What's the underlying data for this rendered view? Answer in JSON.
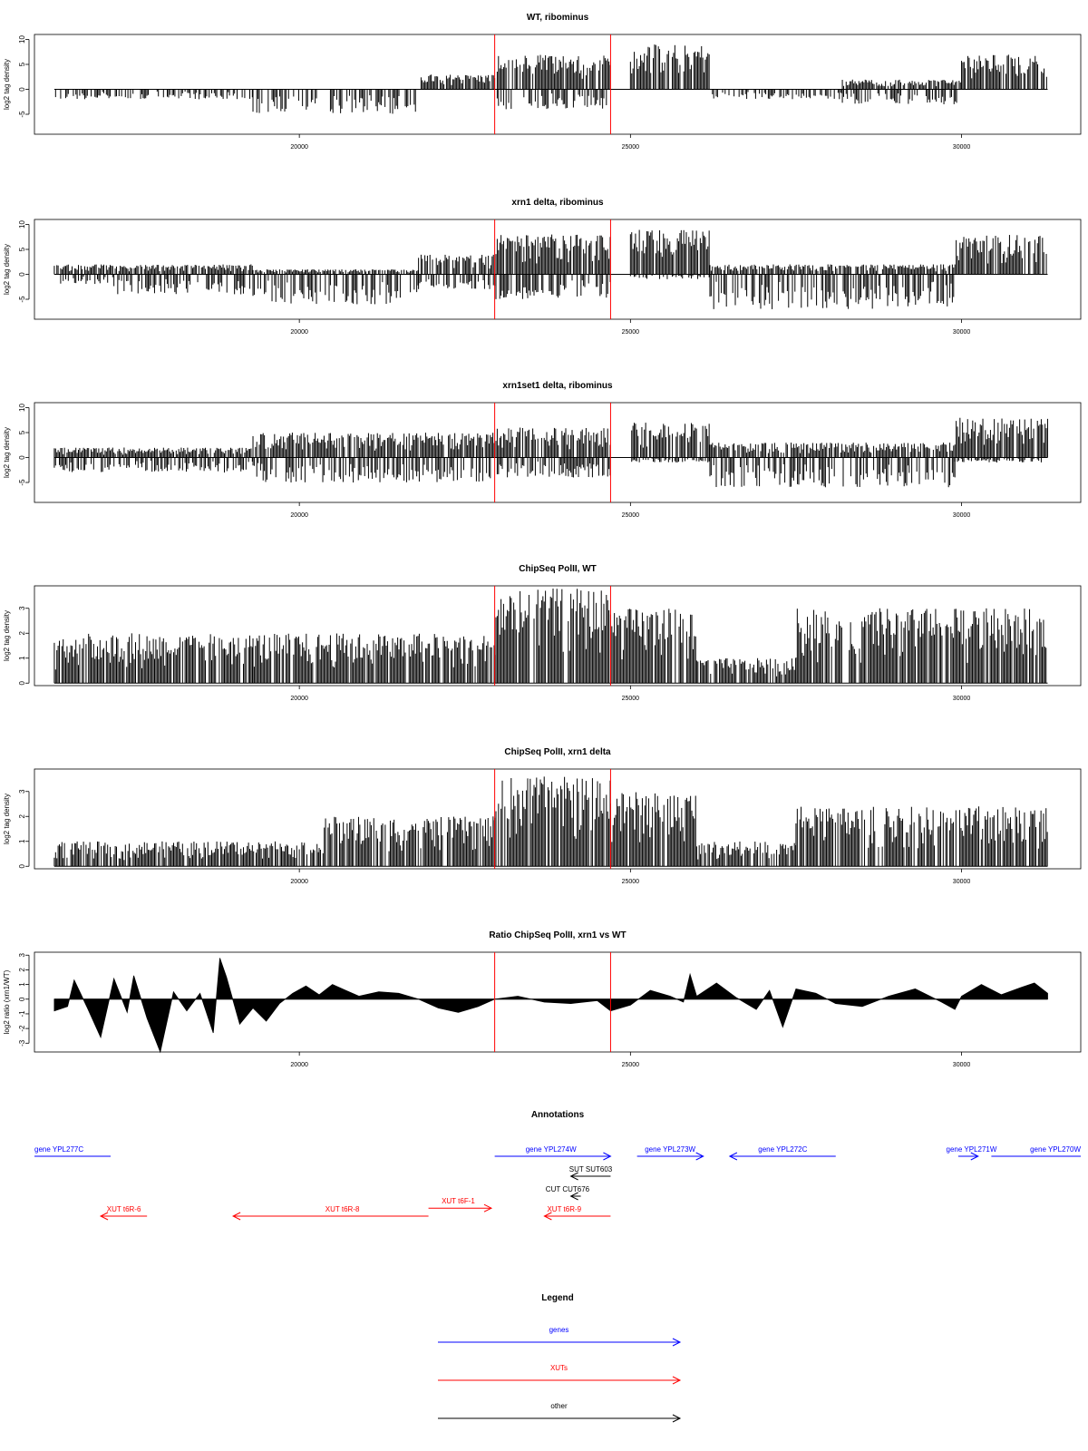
{
  "chart_data": [
    {
      "type": "bar",
      "title": "WT, ribominus",
      "ylabel": "log2 tag density",
      "xlim": [
        16000,
        31800
      ],
      "ylim": [
        -9,
        11
      ],
      "yticks": [
        -5,
        0,
        5,
        10
      ],
      "xticks": [
        20000,
        25000,
        30000
      ],
      "markers": [
        22950,
        24700
      ],
      "regions": [
        {
          "x0": 16000,
          "x1": 16300,
          "pos": 0,
          "neg": 3
        },
        {
          "x0": 16300,
          "x1": 19300,
          "pos": 0,
          "neg": 2
        },
        {
          "x0": 19300,
          "x1": 21800,
          "pos": 0,
          "neg": 5
        },
        {
          "x0": 21800,
          "x1": 22950,
          "pos": 3,
          "neg": 0
        },
        {
          "x0": 22950,
          "x1": 24700,
          "pos": 7,
          "neg": 4
        },
        {
          "x0": 24700,
          "x1": 25000,
          "pos": 0,
          "neg": 0
        },
        {
          "x0": 25000,
          "x1": 26200,
          "pos": 9,
          "neg": 0
        },
        {
          "x0": 26200,
          "x1": 28200,
          "pos": 0,
          "neg": 2
        },
        {
          "x0": 28200,
          "x1": 30000,
          "pos": 2,
          "neg": 3
        },
        {
          "x0": 30000,
          "x1": 31300,
          "pos": 7,
          "neg": 0
        }
      ]
    },
    {
      "type": "bar",
      "title": "xrn1 delta, ribominus",
      "ylabel": "log2 tag density",
      "xlim": [
        16000,
        31800
      ],
      "ylim": [
        -9,
        11
      ],
      "yticks": [
        -5,
        0,
        5,
        10
      ],
      "xticks": [
        20000,
        25000,
        30000
      ],
      "markers": [
        22950,
        24700
      ],
      "regions": [
        {
          "x0": 16000,
          "x1": 17200,
          "pos": 2,
          "neg": 2
        },
        {
          "x0": 17200,
          "x1": 19300,
          "pos": 2,
          "neg": 4
        },
        {
          "x0": 19300,
          "x1": 21800,
          "pos": 1,
          "neg": 6
        },
        {
          "x0": 21800,
          "x1": 22950,
          "pos": 4,
          "neg": 3
        },
        {
          "x0": 22950,
          "x1": 24700,
          "pos": 8,
          "neg": 5
        },
        {
          "x0": 24700,
          "x1": 25000,
          "pos": 0,
          "neg": 0
        },
        {
          "x0": 25000,
          "x1": 26200,
          "pos": 9,
          "neg": 1
        },
        {
          "x0": 26200,
          "x1": 29900,
          "pos": 2,
          "neg": 7
        },
        {
          "x0": 29900,
          "x1": 31300,
          "pos": 8,
          "neg": 0
        }
      ]
    },
    {
      "type": "bar",
      "title": "xrn1set1 delta, ribominus",
      "ylabel": "log2 tag density",
      "xlim": [
        16000,
        31800
      ],
      "ylim": [
        -9,
        11
      ],
      "yticks": [
        -5,
        0,
        5,
        10
      ],
      "xticks": [
        20000,
        25000,
        30000
      ],
      "markers": [
        22950,
        24700
      ],
      "regions": [
        {
          "x0": 16000,
          "x1": 19300,
          "pos": 2,
          "neg": 3
        },
        {
          "x0": 19300,
          "x1": 22950,
          "pos": 5,
          "neg": 5
        },
        {
          "x0": 22950,
          "x1": 24700,
          "pos": 6,
          "neg": 4
        },
        {
          "x0": 24700,
          "x1": 25000,
          "pos": 0,
          "neg": 0
        },
        {
          "x0": 25000,
          "x1": 26200,
          "pos": 7,
          "neg": 1
        },
        {
          "x0": 26200,
          "x1": 29900,
          "pos": 3,
          "neg": 6
        },
        {
          "x0": 29900,
          "x1": 31300,
          "pos": 8,
          "neg": 1
        }
      ]
    },
    {
      "type": "bar",
      "title": "ChipSeq PolII, WT",
      "ylabel": "log2 tag density",
      "xlim": [
        16000,
        31800
      ],
      "ylim": [
        -0.1,
        3.9
      ],
      "yticks": [
        0,
        1,
        2,
        3
      ],
      "xticks": [
        20000,
        25000,
        30000
      ],
      "markers": [
        22950,
        24700
      ],
      "regions": [
        {
          "x0": 16000,
          "x1": 19300,
          "pos": 2,
          "neg": 0
        },
        {
          "x0": 19300,
          "x1": 22950,
          "pos": 2,
          "neg": 0
        },
        {
          "x0": 22950,
          "x1": 24700,
          "pos": 3.8,
          "neg": 0
        },
        {
          "x0": 24700,
          "x1": 26000,
          "pos": 3,
          "neg": 0
        },
        {
          "x0": 26000,
          "x1": 27500,
          "pos": 1,
          "neg": 0
        },
        {
          "x0": 27500,
          "x1": 31300,
          "pos": 3,
          "neg": 0
        }
      ]
    },
    {
      "type": "bar",
      "title": "ChipSeq PolII, xrn1 delta",
      "ylabel": "log2 tag density",
      "xlim": [
        16000,
        31800
      ],
      "ylim": [
        -0.1,
        3.9
      ],
      "yticks": [
        0,
        1,
        2,
        3
      ],
      "xticks": [
        20000,
        25000,
        30000
      ],
      "markers": [
        22950,
        24700
      ],
      "regions": [
        {
          "x0": 16000,
          "x1": 20300,
          "pos": 1,
          "neg": 0
        },
        {
          "x0": 20300,
          "x1": 22950,
          "pos": 2,
          "neg": 0
        },
        {
          "x0": 22950,
          "x1": 24700,
          "pos": 3.6,
          "neg": 0
        },
        {
          "x0": 24700,
          "x1": 26000,
          "pos": 3,
          "neg": 0
        },
        {
          "x0": 26000,
          "x1": 27500,
          "pos": 1,
          "neg": 0
        },
        {
          "x0": 27500,
          "x1": 31300,
          "pos": 2.4,
          "neg": 0
        }
      ]
    },
    {
      "type": "area",
      "title": "Ratio ChipSeq PolII, xrn1 vs WT",
      "ylabel": "log2 ratio (xrn1/WT)",
      "xlim": [
        16000,
        31800
      ],
      "ylim": [
        -3.6,
        3.2
      ],
      "yticks": [
        -3,
        -2,
        -1,
        0,
        1,
        2,
        3
      ],
      "xticks": [
        20000,
        25000,
        30000
      ],
      "markers": [
        22950,
        24700
      ],
      "x": [
        16300,
        16500,
        16600,
        16800,
        17000,
        17200,
        17400,
        17500,
        17700,
        17900,
        18100,
        18300,
        18500,
        18700,
        18800,
        18900,
        19100,
        19300,
        19500,
        19700,
        19900,
        20100,
        20300,
        20500,
        20700,
        20900,
        21200,
        21500,
        21800,
        22100,
        22400,
        22700,
        22950,
        23300,
        23700,
        24100,
        24500,
        24700,
        25000,
        25300,
        25600,
        25800,
        25900,
        26000,
        26300,
        26600,
        26900,
        27100,
        27300,
        27500,
        27800,
        28100,
        28500,
        28900,
        29300,
        29700,
        29900,
        30000,
        30300,
        30600,
        30900,
        31100,
        31300
      ],
      "y": [
        -0.8,
        -0.5,
        1.3,
        -0.6,
        -2.6,
        1.4,
        -0.9,
        1.6,
        -1.3,
        -3.6,
        0.5,
        -0.8,
        0.4,
        -2.3,
        2.8,
        1.5,
        -1.7,
        -0.6,
        -1.5,
        -0.3,
        0.4,
        0.9,
        0.3,
        1.0,
        0.6,
        0.2,
        0.5,
        0.4,
        0.0,
        -0.6,
        -0.9,
        -0.5,
        0.0,
        0.2,
        -0.2,
        -0.3,
        -0.1,
        -0.8,
        -0.4,
        0.6,
        0.2,
        -0.2,
        1.7,
        0.2,
        1.1,
        0.1,
        -0.7,
        0.6,
        -1.9,
        0.7,
        0.4,
        -0.3,
        -0.5,
        0.2,
        0.7,
        -0.2,
        -0.7,
        0.2,
        1.0,
        0.3,
        0.8,
        1.1,
        0.4
      ]
    }
  ],
  "annotations": {
    "title": "Annotations",
    "items": [
      {
        "label": "gene YPL277C",
        "x0": 16000,
        "x1": 17150,
        "row": 0,
        "dir": "none",
        "color": "#0000ff",
        "labelX": 16000,
        "labelAnchor": "start"
      },
      {
        "label": "gene YPL274W",
        "x0": 22950,
        "x1": 24700,
        "row": 0,
        "dir": "right",
        "color": "#0000ff",
        "labelX": 23800,
        "labelAnchor": "middle"
      },
      {
        "label": "gene YPL273W",
        "x0": 25100,
        "x1": 26100,
        "row": 0,
        "dir": "right",
        "color": "#0000ff",
        "labelX": 25600,
        "labelAnchor": "middle"
      },
      {
        "label": "gene YPL272C",
        "x0": 26500,
        "x1": 28100,
        "row": 0,
        "dir": "left",
        "color": "#0000ff",
        "labelX": 27300,
        "labelAnchor": "middle"
      },
      {
        "label": "gene YPL271W",
        "x0": 29950,
        "x1": 30250,
        "row": 0,
        "dir": "right",
        "color": "#0000ff",
        "labelX": 30150,
        "labelAnchor": "middle"
      },
      {
        "label": "gene YPL270W",
        "x0": 30450,
        "x1": 31800,
        "row": 0,
        "dir": "none",
        "color": "#0000ff",
        "labelX": 31800,
        "labelAnchor": "end"
      },
      {
        "label": "SUT SUT603",
        "x0": 24100,
        "x1": 24700,
        "row": 1,
        "dir": "left",
        "color": "#000000",
        "labelX": 24400,
        "labelAnchor": "middle"
      },
      {
        "label": "CUT CUT676",
        "x0": 24100,
        "x1": 24250,
        "row": 2,
        "dir": "left",
        "color": "#000000",
        "labelX": 24050,
        "labelAnchor": "middle"
      },
      {
        "label": "XUT t6R-6",
        "x0": 17000,
        "x1": 17700,
        "row": 3,
        "dir": "left",
        "color": "#ff0000",
        "labelX": 17350,
        "labelAnchor": "middle"
      },
      {
        "label": "XUT t6R-8",
        "x0": 19000,
        "x1": 21950,
        "row": 3,
        "dir": "left",
        "color": "#ff0000",
        "labelX": 20650,
        "labelAnchor": "middle"
      },
      {
        "label": "XUT t6F-1",
        "x0": 21950,
        "x1": 22900,
        "row": 2.6,
        "dir": "right",
        "color": "#ff0000",
        "labelX": 22400,
        "labelAnchor": "middle"
      },
      {
        "label": "XUT t6R-9",
        "x0": 23700,
        "x1": 24700,
        "row": 3,
        "dir": "left",
        "color": "#ff0000",
        "labelX": 24000,
        "labelAnchor": "middle"
      }
    ]
  },
  "legend": {
    "title": "Legend",
    "items": [
      {
        "label": "genes",
        "color": "#0000ff"
      },
      {
        "label": "XUTs",
        "color": "#ff0000"
      },
      {
        "label": "other",
        "color": "#000000"
      }
    ]
  }
}
